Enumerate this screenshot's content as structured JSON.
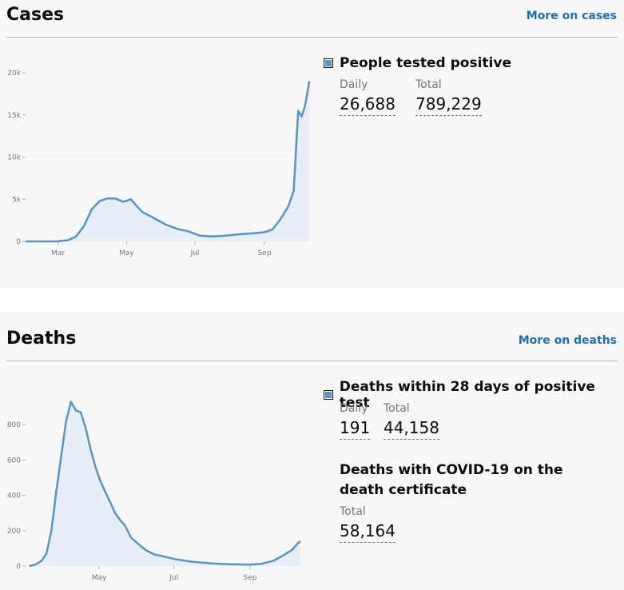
{
  "cases": {
    "title": "Cases",
    "more_link": "More on cases",
    "metric": {
      "heading": "People tested positive",
      "daily_label": "Daily",
      "daily_value": "26,688",
      "total_label": "Total",
      "total_value": "789,229"
    }
  },
  "deaths": {
    "title": "Deaths",
    "more_link": "More on deaths",
    "metric": {
      "heading": "Deaths within 28 days of positive test",
      "daily_label": "Daily",
      "daily_value": "191",
      "total_label": "Total",
      "total_value": "44,158"
    },
    "certificate": {
      "heading": "Deaths with COVID-19 on the death certificate",
      "total_label": "Total",
      "total_value": "58,164"
    }
  },
  "chart_data": [
    {
      "type": "area",
      "series_color": "#5694ca",
      "fill_color": "#e8eef8",
      "x_unit": "date",
      "x_range": [
        "2020-02-01",
        "2020-10-03"
      ],
      "ylim": [
        0,
        20000
      ],
      "y_ticks": [
        0,
        5000,
        10000,
        15000,
        20000
      ],
      "y_tick_labels": [
        "0",
        "5k",
        "10k",
        "15k",
        "20k"
      ],
      "x_ticks": [
        "2020-03-01",
        "2020-05-01",
        "2020-07-01",
        "2020-09-01"
      ],
      "x_tick_labels": [
        "Mar",
        "May",
        "Jul",
        "Sep"
      ],
      "points": [
        [
          "2020-02-01",
          0
        ],
        [
          "2020-02-20",
          0
        ],
        [
          "2020-03-01",
          30
        ],
        [
          "2020-03-10",
          150
        ],
        [
          "2020-03-17",
          600
        ],
        [
          "2020-03-24",
          1800
        ],
        [
          "2020-03-31",
          3800
        ],
        [
          "2020-04-07",
          4800
        ],
        [
          "2020-04-14",
          5100
        ],
        [
          "2020-04-21",
          5100
        ],
        [
          "2020-04-28",
          4700
        ],
        [
          "2020-05-05",
          5000
        ],
        [
          "2020-05-10",
          4200
        ],
        [
          "2020-05-15",
          3500
        ],
        [
          "2020-05-25",
          2800
        ],
        [
          "2020-06-05",
          2000
        ],
        [
          "2020-06-15",
          1500
        ],
        [
          "2020-06-25",
          1200
        ],
        [
          "2020-07-05",
          700
        ],
        [
          "2020-07-15",
          600
        ],
        [
          "2020-07-25",
          650
        ],
        [
          "2020-08-05",
          800
        ],
        [
          "2020-08-15",
          900
        ],
        [
          "2020-08-25",
          1000
        ],
        [
          "2020-09-01",
          1100
        ],
        [
          "2020-09-08",
          1400
        ],
        [
          "2020-09-15",
          2600
        ],
        [
          "2020-09-22",
          4100
        ],
        [
          "2020-09-27",
          6000
        ],
        [
          "2020-10-01",
          15500
        ],
        [
          "2020-10-04",
          14800
        ],
        [
          "2020-10-07",
          16000
        ],
        [
          "2020-10-11",
          19000
        ]
      ]
    },
    {
      "type": "area",
      "series_color": "#5694ca",
      "fill_color": "#e8eef8",
      "x_unit": "date",
      "x_range": [
        "2020-03-02",
        "2020-10-12"
      ],
      "ylim": [
        0,
        1000
      ],
      "y_ticks": [
        0,
        200,
        400,
        600,
        800
      ],
      "y_tick_labels": [
        "0",
        "200",
        "400",
        "600",
        "800"
      ],
      "x_ticks": [
        "2020-05-01",
        "2020-07-01",
        "2020-09-01"
      ],
      "x_tick_labels": [
        "May",
        "Jul",
        "Sep"
      ],
      "points": [
        [
          "2020-03-05",
          0
        ],
        [
          "2020-03-10",
          8
        ],
        [
          "2020-03-15",
          30
        ],
        [
          "2020-03-19",
          70
        ],
        [
          "2020-03-23",
          200
        ],
        [
          "2020-03-27",
          420
        ],
        [
          "2020-03-31",
          620
        ],
        [
          "2020-04-04",
          820
        ],
        [
          "2020-04-08",
          930
        ],
        [
          "2020-04-12",
          880
        ],
        [
          "2020-04-16",
          870
        ],
        [
          "2020-04-20",
          780
        ],
        [
          "2020-04-24",
          660
        ],
        [
          "2020-04-28",
          560
        ],
        [
          "2020-05-02",
          480
        ],
        [
          "2020-05-06",
          420
        ],
        [
          "2020-05-10",
          360
        ],
        [
          "2020-05-14",
          300
        ],
        [
          "2020-05-18",
          260
        ],
        [
          "2020-05-22",
          230
        ],
        [
          "2020-05-27",
          160
        ],
        [
          "2020-06-01",
          130
        ],
        [
          "2020-06-08",
          90
        ],
        [
          "2020-06-15",
          65
        ],
        [
          "2020-06-22",
          55
        ],
        [
          "2020-07-01",
          40
        ],
        [
          "2020-07-15",
          25
        ],
        [
          "2020-07-31",
          15
        ],
        [
          "2020-08-15",
          10
        ],
        [
          "2020-09-01",
          8
        ],
        [
          "2020-09-10",
          12
        ],
        [
          "2020-09-20",
          30
        ],
        [
          "2020-09-28",
          60
        ],
        [
          "2020-10-05",
          90
        ],
        [
          "2020-10-10",
          130
        ],
        [
          "2020-10-12",
          140
        ]
      ]
    }
  ]
}
